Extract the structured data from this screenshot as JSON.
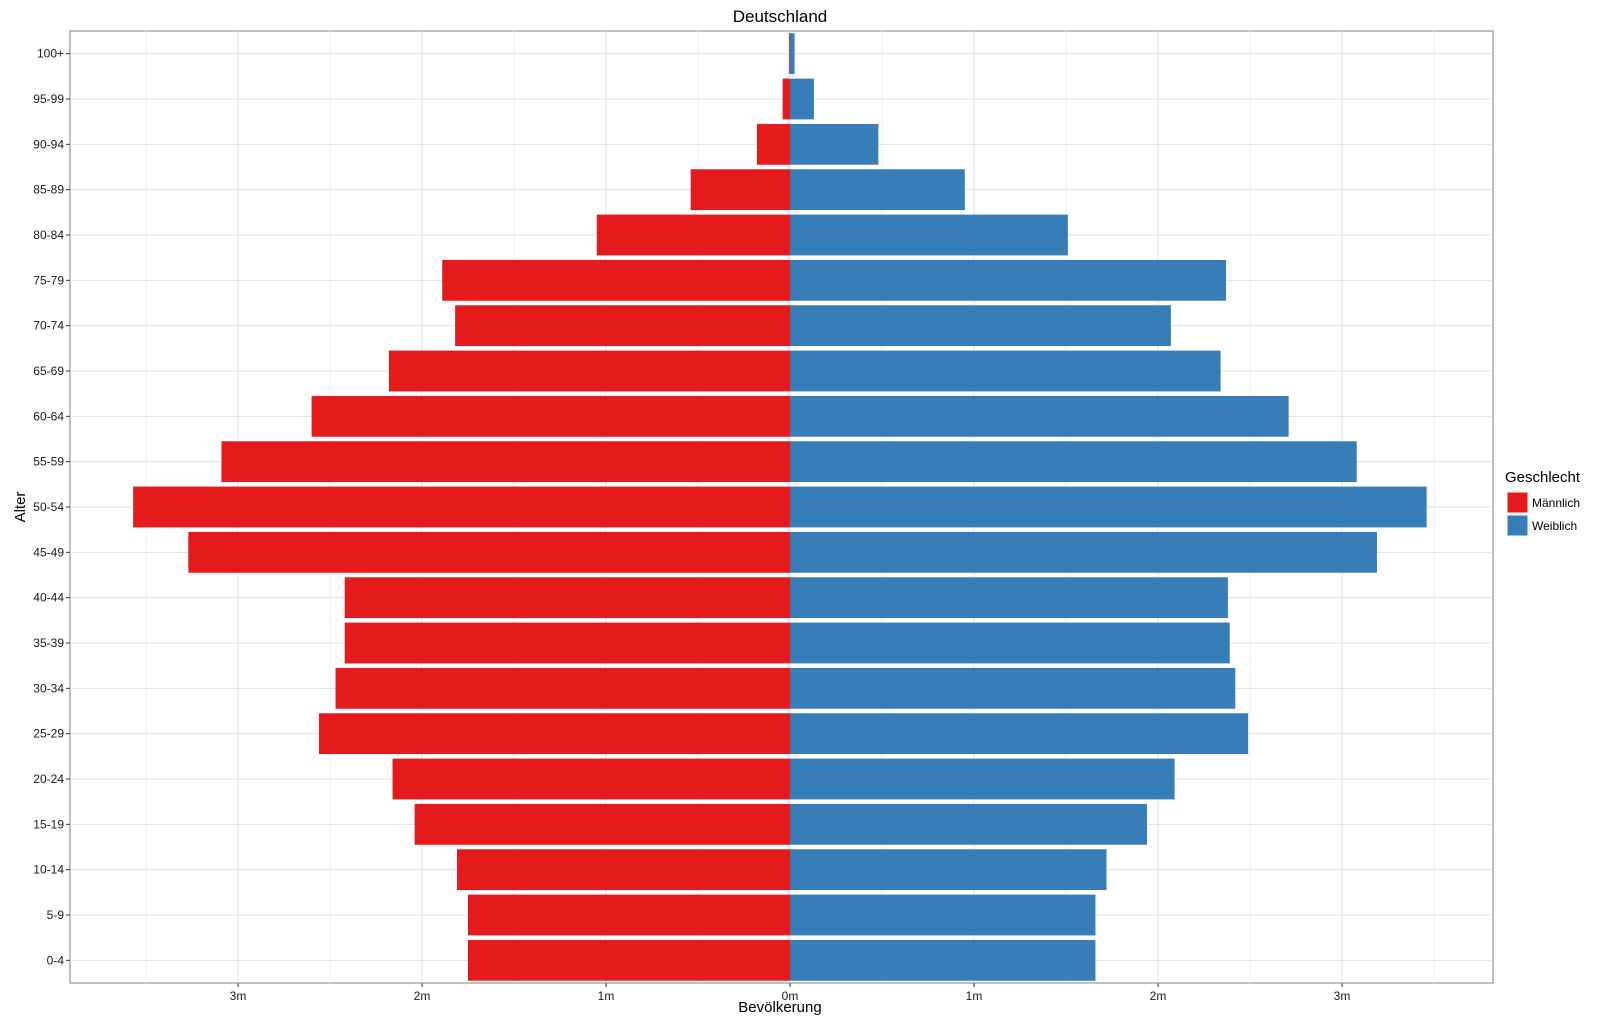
{
  "chart_data": {
    "type": "bar",
    "orientation": "horizontal",
    "title": "Deutschland",
    "xlabel": "Bevölkerung",
    "ylabel": "Alter",
    "categories": [
      "0-4",
      "5-9",
      "10-14",
      "15-19",
      "20-24",
      "25-29",
      "30-34",
      "35-39",
      "40-44",
      "45-49",
      "50-54",
      "55-59",
      "60-64",
      "65-69",
      "70-74",
      "75-79",
      "80-84",
      "85-89",
      "90-94",
      "95-99",
      "100+"
    ],
    "series": [
      {
        "name": "Männlich",
        "color": "#e41a1c",
        "values": [
          -1.75,
          -1.75,
          -1.81,
          -2.04,
          -2.16,
          -2.56,
          -2.47,
          -2.42,
          -2.42,
          -3.27,
          -3.57,
          -3.09,
          -2.6,
          -2.18,
          -1.82,
          -1.89,
          -1.05,
          -0.54,
          -0.18,
          -0.04,
          -0.005
        ]
      },
      {
        "name": "Weiblich",
        "color": "#377eb8",
        "values": [
          1.66,
          1.66,
          1.72,
          1.94,
          2.09,
          2.49,
          2.42,
          2.39,
          2.38,
          3.19,
          3.46,
          3.08,
          2.71,
          2.34,
          2.07,
          2.37,
          1.51,
          0.95,
          0.48,
          0.13,
          0.025
        ]
      }
    ],
    "xticks": [
      -3,
      -2,
      -1,
      0,
      1,
      2,
      3
    ],
    "xtick_labels": [
      "3m",
      "2m",
      "1m",
      "0m",
      "1m",
      "2m",
      "3m"
    ],
    "xlim": [
      -3.8,
      3.8
    ],
    "unit": "million",
    "grid": true,
    "legend": {
      "title": "Geschlecht",
      "position": "right",
      "entries": [
        "Männlich",
        "Weiblich"
      ]
    }
  }
}
